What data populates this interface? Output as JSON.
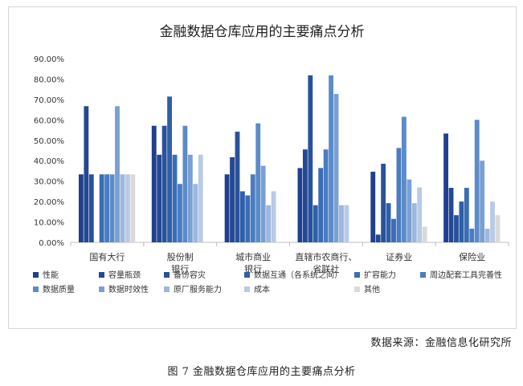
{
  "source_text": "数据来源：金融信息化研究所",
  "caption": "图 7 金融数据仓库应用的主要痛点分析",
  "chart_data": {
    "type": "bar",
    "title": "金融数据仓库应用的主要痛点分析",
    "xlabel": "",
    "ylabel": "",
    "ylim": [
      0,
      90
    ],
    "y_ticks": [
      "0.00%",
      "10.00%",
      "20.00%",
      "30.00%",
      "40.00%",
      "50.00%",
      "60.00%",
      "70.00%",
      "80.00%",
      "90.00%"
    ],
    "grid": false,
    "legend_position": "bottom",
    "categories": [
      [
        "国有大行"
      ],
      [
        "股份制",
        "银行"
      ],
      [
        "城市商业",
        "银行"
      ],
      [
        "直辖市农商行、",
        "省联社"
      ],
      [
        "证券业"
      ],
      [
        "保险业"
      ]
    ],
    "series": [
      {
        "name": "性能",
        "color": "#1f3f8f",
        "values": [
          33.3,
          57.1,
          33.3,
          36.4,
          34.6,
          53.3
        ]
      },
      {
        "name": "容量瓶颈",
        "color": "#244892",
        "values": [
          66.7,
          42.9,
          41.7,
          45.5,
          3.8,
          26.7
        ]
      },
      {
        "name": "备份容灾",
        "color": "#28529c",
        "values": [
          33.3,
          57.1,
          54.2,
          81.8,
          38.5,
          13.3
        ]
      },
      {
        "name": "数据互通（各系统之间）",
        "color": "#2e5fa8",
        "values": [
          0,
          71.4,
          25.0,
          18.2,
          19.2,
          20.0
        ]
      },
      {
        "name": "扩容能力",
        "color": "#3a6db5",
        "values": [
          33.3,
          42.9,
          23.0,
          36.4,
          11.5,
          26.7
        ]
      },
      {
        "name": "周边配套工具完善性",
        "color": "#4a7cc0",
        "values": [
          33.3,
          28.6,
          33.3,
          45.5,
          46.2,
          6.7
        ]
      },
      {
        "name": "数据质量",
        "color": "#5b8bc9",
        "values": [
          33.3,
          57.1,
          58.3,
          81.8,
          61.5,
          60.0
        ]
      },
      {
        "name": "数据时效性",
        "color": "#7aa0d3",
        "values": [
          66.7,
          42.9,
          37.5,
          72.7,
          30.8,
          40.0
        ]
      },
      {
        "name": "原厂服务能力",
        "color": "#9db7de",
        "values": [
          33.3,
          28.6,
          18.2,
          18.2,
          19.2,
          6.7
        ]
      },
      {
        "name": "成本",
        "color": "#b9cae6",
        "values": [
          33.3,
          42.9,
          25.0,
          18.2,
          26.9,
          20.0
        ]
      },
      {
        "name": "其他",
        "color": "#d9d9d9",
        "values": [
          33.3,
          0,
          0,
          0,
          7.7,
          13.3
        ]
      }
    ]
  }
}
